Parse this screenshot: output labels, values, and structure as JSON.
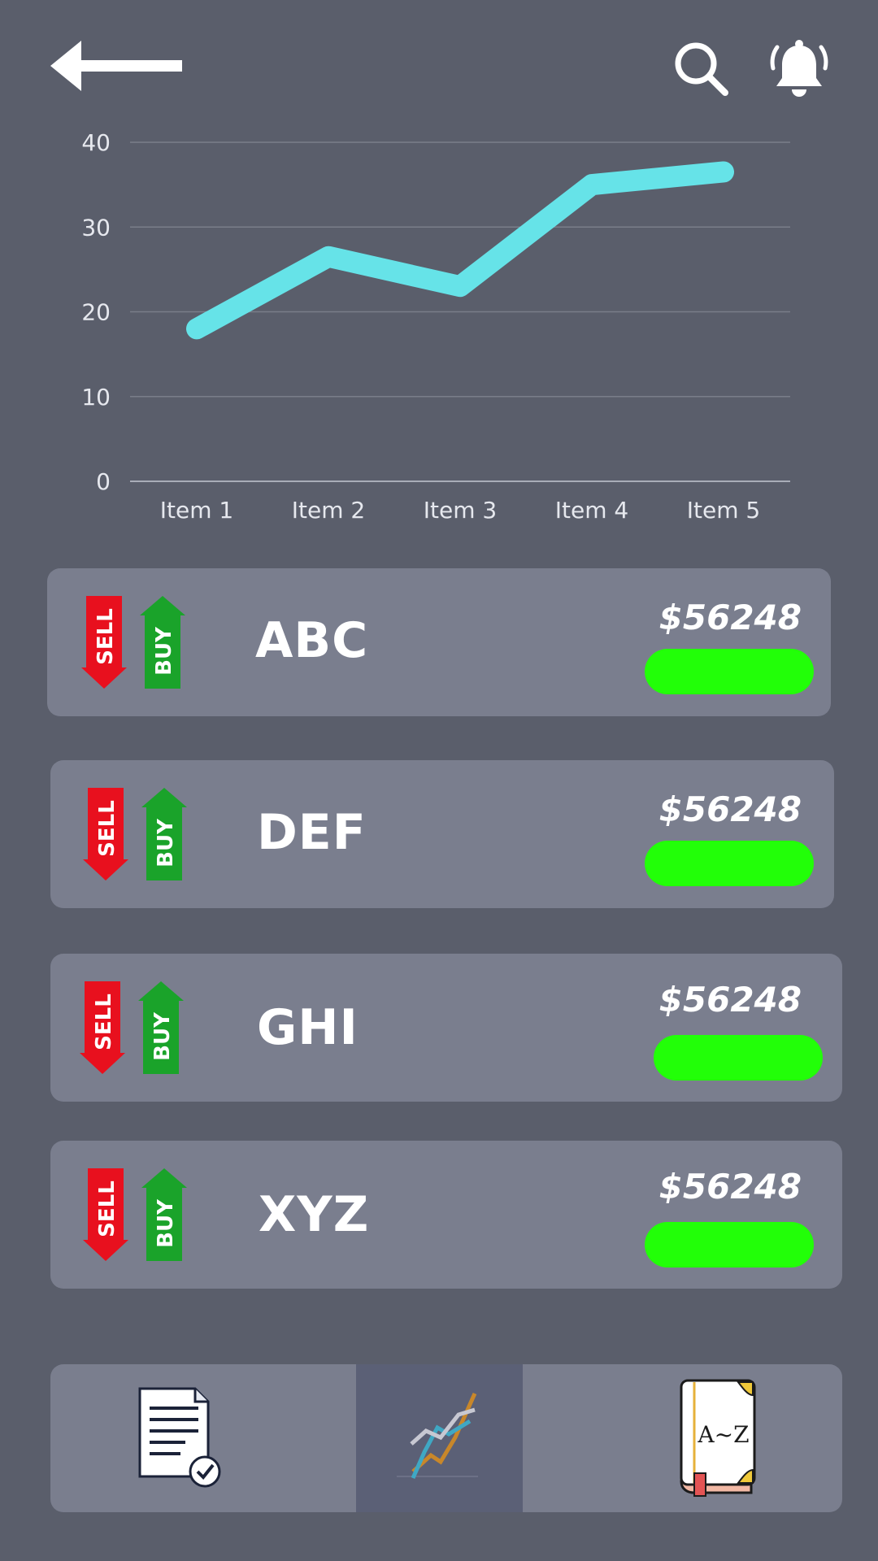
{
  "header": {
    "back_icon": "back-arrow-icon",
    "search_icon": "search-icon",
    "notification_icon": "bell-icon"
  },
  "chart_data": {
    "type": "line",
    "categories": [
      "Item 1",
      "Item 2",
      "Item 3",
      "Item 4",
      "Item 5"
    ],
    "series": [
      {
        "values": [
          18,
          26.5,
          23,
          35,
          36.5
        ],
        "color": "#66e3e8"
      }
    ],
    "yticks": [
      "0",
      "10",
      "20",
      "30",
      "40"
    ],
    "ylim": [
      0,
      40
    ],
    "grid": true
  },
  "stocks": [
    {
      "ticker": "ABC",
      "price": "$56248",
      "sell_label": "SELL",
      "buy_label": "BUY"
    },
    {
      "ticker": "DEF",
      "price": "$56248",
      "sell_label": "SELL",
      "buy_label": "BUY"
    },
    {
      "ticker": "GHI",
      "price": "$56248",
      "sell_label": "SELL",
      "buy_label": "BUY"
    },
    {
      "ticker": "XYZ",
      "price": "$56248",
      "sell_label": "SELL",
      "buy_label": "BUY"
    }
  ],
  "colors": {
    "background": "#5a5e6b",
    "card": "#7a7e8e",
    "sell": "#e8101e",
    "buy": "#1aa32a",
    "status_pill": "#22ff08",
    "line": "#66e3e8"
  },
  "bottom_nav": {
    "items": [
      {
        "icon": "document-checklist-icon"
      },
      {
        "icon": "line-chart-icon",
        "active": true
      },
      {
        "icon": "dictionary-book-icon",
        "book_label": "A~Z"
      }
    ]
  }
}
